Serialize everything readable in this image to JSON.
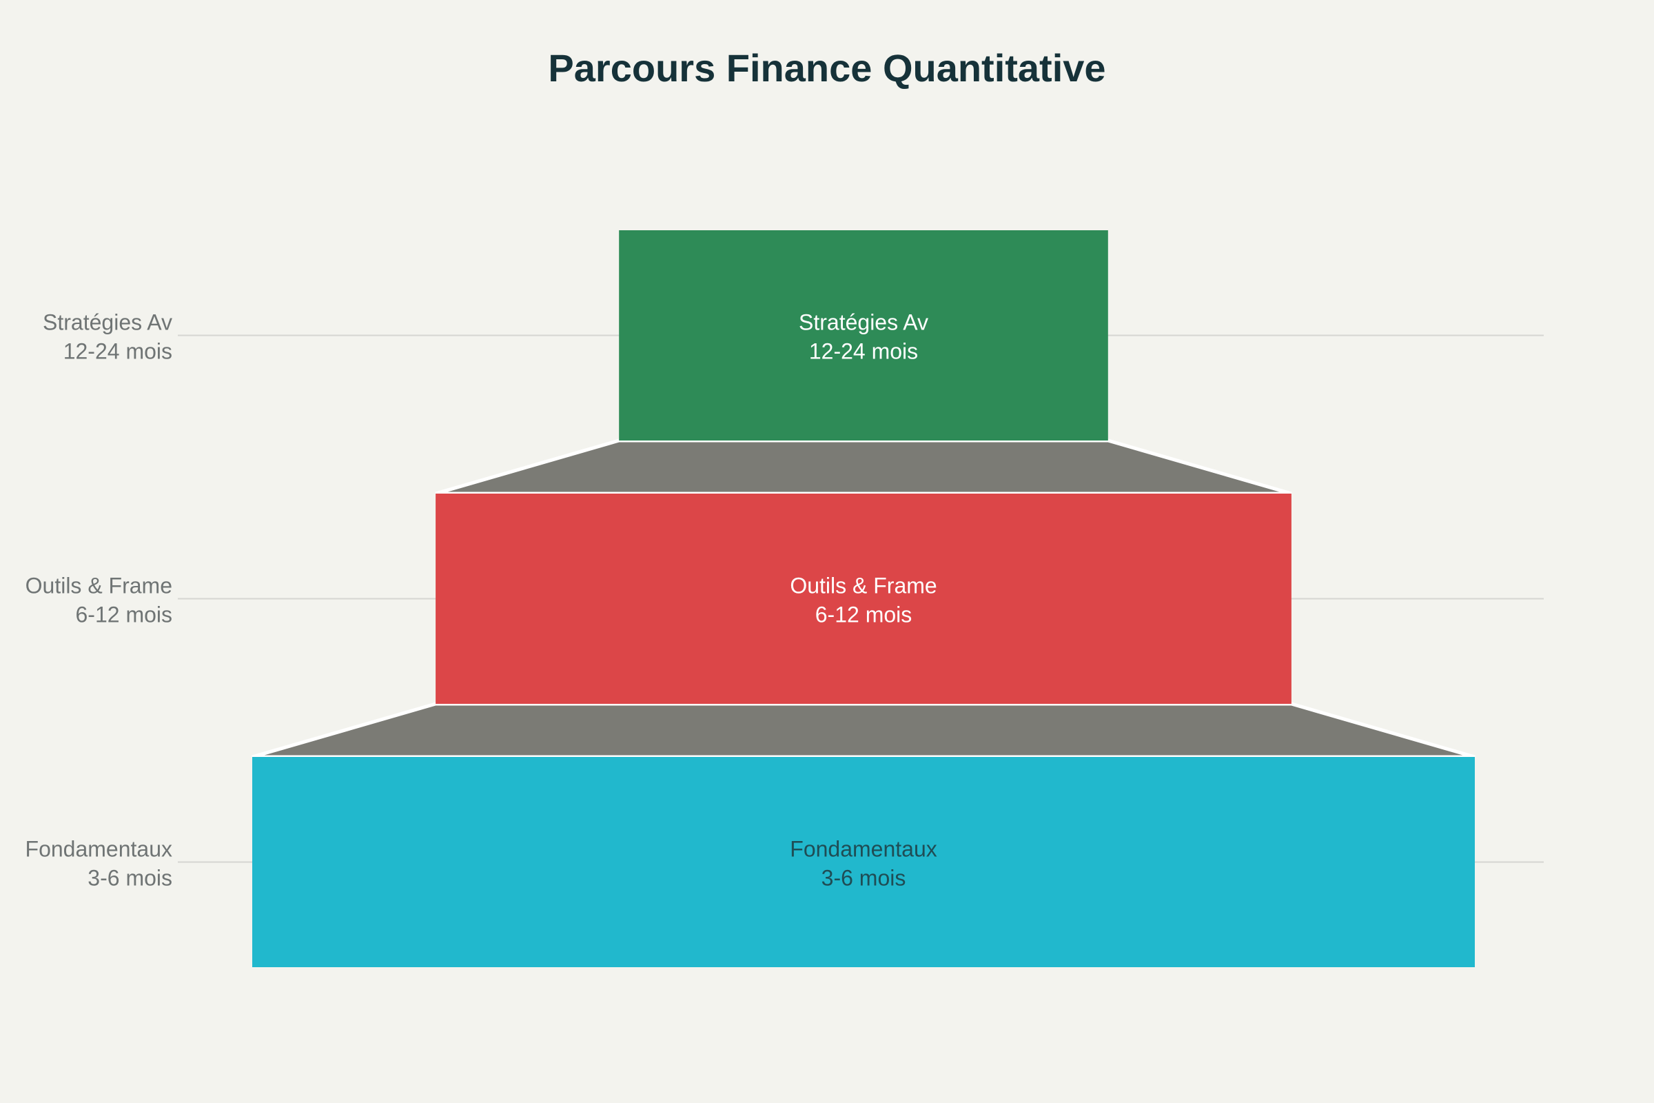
{
  "chart_data": {
    "type": "funnel",
    "title": "Parcours Finance Quantitative",
    "order": "top-to-bottom",
    "stages": [
      {
        "name": "Stratégies Av",
        "duration": "12-24 mois",
        "value": 40,
        "color": "#2e8b57",
        "label_color": "#ffffff"
      },
      {
        "name": "Outils & Frame",
        "duration": "6-12 mois",
        "value": 70,
        "color": "#dc4648",
        "label_color": "#ffffff"
      },
      {
        "name": "Fondamentaux",
        "duration": "3-6 mois",
        "value": 100,
        "color": "#21b8cd",
        "label_color": "#1f4d55"
      }
    ],
    "connector_color": "#7b7b75",
    "gridlines": true
  }
}
